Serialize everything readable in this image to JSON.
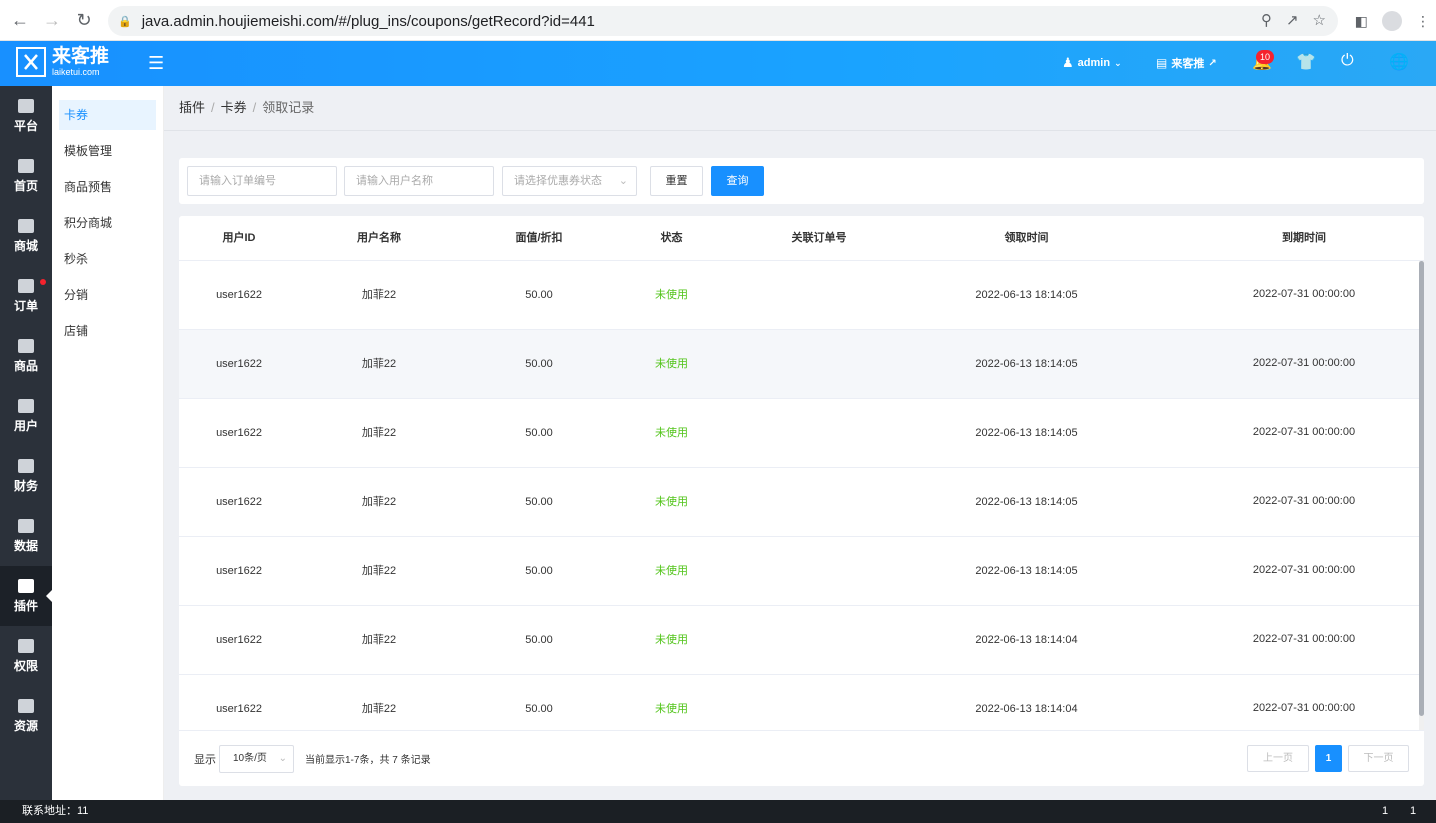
{
  "browser": {
    "url": "java.admin.houjiemeishi.com/#/plug_ins/coupons/getRecord?id=441"
  },
  "header": {
    "logo_title": "来客推",
    "logo_sub": "laiketui.com",
    "user": "admin",
    "store": "来客推",
    "notification_count": "10"
  },
  "sidenav": [
    {
      "label": "平台",
      "icon": "monitor-icon"
    },
    {
      "label": "首页",
      "icon": "home-icon"
    },
    {
      "label": "商城",
      "icon": "mall-icon"
    },
    {
      "label": "订单",
      "icon": "order-icon"
    },
    {
      "label": "商品",
      "icon": "goods-icon"
    },
    {
      "label": "用户",
      "icon": "user-icon"
    },
    {
      "label": "财务",
      "icon": "wallet-icon"
    },
    {
      "label": "数据",
      "icon": "pie-chart-icon"
    },
    {
      "label": "插件",
      "icon": "puzzle-icon"
    },
    {
      "label": "权限",
      "icon": "shield-icon"
    },
    {
      "label": "资源",
      "icon": "image-icon"
    }
  ],
  "submenu": [
    "卡券",
    "模板管理",
    "商品预售",
    "积分商城",
    "秒杀",
    "分销",
    "店铺"
  ],
  "breadcrumb": [
    "插件",
    "卡券",
    "领取记录"
  ],
  "filter": {
    "order_placeholder": "请输入订单编号",
    "user_placeholder": "请输入用户名称",
    "status_placeholder": "请选择优惠券状态",
    "reset_label": "重置",
    "search_label": "查询"
  },
  "table": {
    "columns": [
      "用户ID",
      "用户名称",
      "面值/折扣",
      "状态",
      "关联订单号",
      "领取时间",
      "到期时间"
    ],
    "rows": [
      {
        "user_id": "user1622",
        "user_name": "加菲22",
        "value": "50.00",
        "status": "未使用",
        "order_no": "",
        "received": "2022-06-13 18:14:05",
        "expires": "2022-07-31 00:00:00"
      },
      {
        "user_id": "user1622",
        "user_name": "加菲22",
        "value": "50.00",
        "status": "未使用",
        "order_no": "",
        "received": "2022-06-13 18:14:05",
        "expires": "2022-07-31 00:00:00"
      },
      {
        "user_id": "user1622",
        "user_name": "加菲22",
        "value": "50.00",
        "status": "未使用",
        "order_no": "",
        "received": "2022-06-13 18:14:05",
        "expires": "2022-07-31 00:00:00"
      },
      {
        "user_id": "user1622",
        "user_name": "加菲22",
        "value": "50.00",
        "status": "未使用",
        "order_no": "",
        "received": "2022-06-13 18:14:05",
        "expires": "2022-07-31 00:00:00"
      },
      {
        "user_id": "user1622",
        "user_name": "加菲22",
        "value": "50.00",
        "status": "未使用",
        "order_no": "",
        "received": "2022-06-13 18:14:05",
        "expires": "2022-07-31 00:00:00"
      },
      {
        "user_id": "user1622",
        "user_name": "加菲22",
        "value": "50.00",
        "status": "未使用",
        "order_no": "",
        "received": "2022-06-13 18:14:04",
        "expires": "2022-07-31 00:00:00"
      },
      {
        "user_id": "user1622",
        "user_name": "加菲22",
        "value": "50.00",
        "status": "未使用",
        "order_no": "",
        "received": "2022-06-13 18:14:04",
        "expires": "2022-07-31 00:00:00"
      }
    ]
  },
  "pager": {
    "show_label": "显示",
    "page_size": "10条/页",
    "summary": "当前显示1-7条，共 7 条记录",
    "prev": "上一页",
    "current": "1",
    "next": "下一页"
  },
  "footer": {
    "contact": "联系地址：11",
    "right_a": "1",
    "right_b": "1"
  },
  "colors": {
    "primary": "#1890ff",
    "status_unused": "#52c41a",
    "sidenav_bg": "#2b313a"
  }
}
